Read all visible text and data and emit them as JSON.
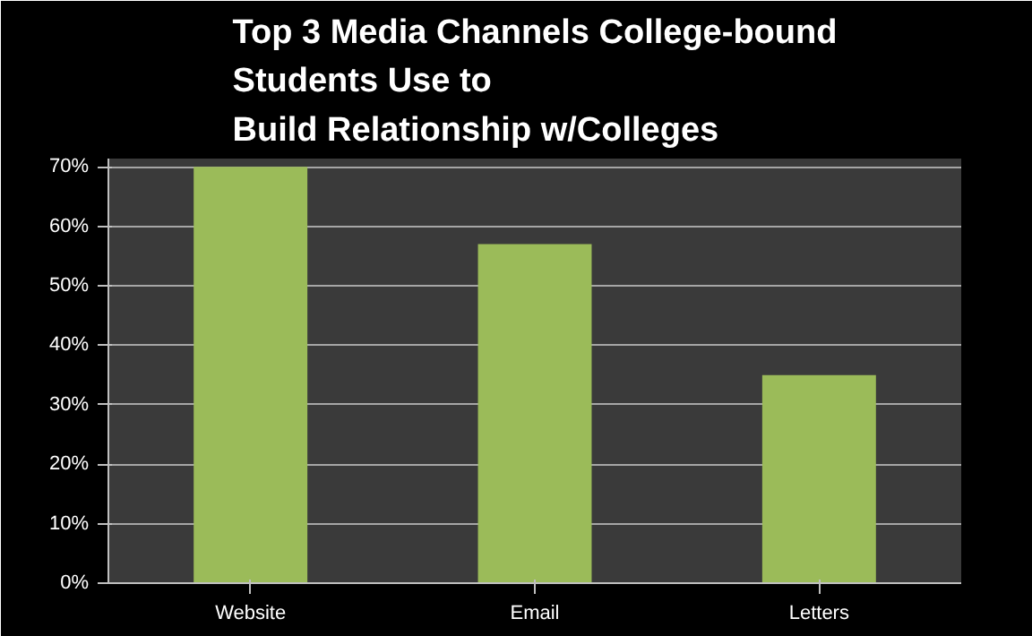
{
  "chart_data": {
    "type": "bar",
    "title": "Top 3 Media Channels College-bound\nStudents Use to\nBuild Relationship w/Colleges",
    "categories": [
      "Website",
      "Email",
      "Letters"
    ],
    "values": [
      70,
      57,
      35
    ],
    "color": "#9bbb59",
    "ylim": [
      0,
      70
    ],
    "yticks": [
      {
        "value": 0,
        "label": "0%"
      },
      {
        "value": 10,
        "label": "10%"
      },
      {
        "value": 20,
        "label": "20%"
      },
      {
        "value": 30,
        "label": "30%"
      },
      {
        "value": 40,
        "label": "40%"
      },
      {
        "value": 50,
        "label": "50%"
      },
      {
        "value": 60,
        "label": "60%"
      },
      {
        "value": 70,
        "label": "70%"
      }
    ],
    "grid": "y"
  }
}
